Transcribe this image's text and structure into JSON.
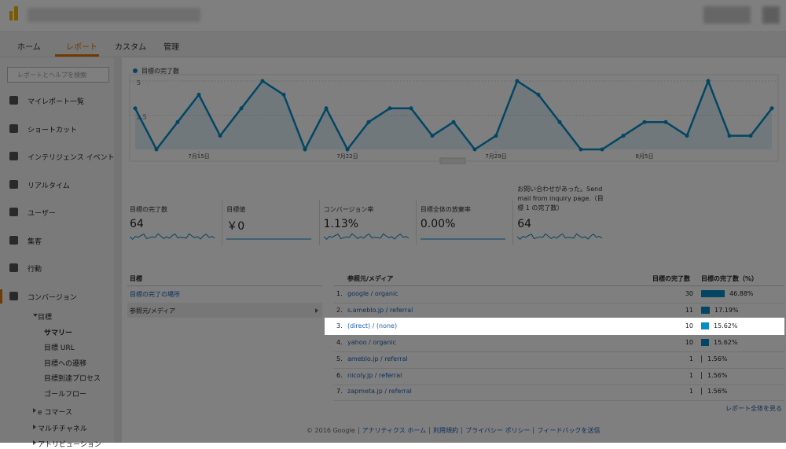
{
  "top_nav": {
    "tabs": [
      "ホーム",
      "レポート",
      "カスタム",
      "管理"
    ],
    "active_tab": 1
  },
  "sidebar": {
    "search_placeholder": "レポートとヘルプを検索",
    "items": [
      "マイレポート一覧",
      "ショートカット",
      "インテリジェンス イベント",
      "リアルタイム",
      "ユーザー",
      "集客",
      "行動",
      "コンバージョン"
    ],
    "active_item": 7,
    "sub_group": "目標",
    "sub_items": [
      "サマリー",
      "目標 URL",
      "目標への遷移",
      "目標到達プロセス",
      "ゴールフロー"
    ],
    "more_groups": [
      "e コマース",
      "マルチチャネル",
      "アトリビューション"
    ]
  },
  "chart_data": {
    "type": "line",
    "categories": [
      null,
      null,
      null,
      "7月15日",
      null,
      null,
      null,
      null,
      null,
      null,
      "7月22日",
      null,
      null,
      null,
      null,
      null,
      null,
      "7月29日",
      null,
      null,
      null,
      null,
      null,
      null,
      "8月5日",
      null,
      null,
      null,
      null,
      null,
      null
    ],
    "series": [
      {
        "name": "目標の完了数",
        "color": "#058dc7",
        "values": [
          3,
          0,
          2,
          4,
          1,
          3,
          5,
          4,
          0,
          3,
          0,
          2,
          3,
          3,
          1,
          2,
          0,
          1,
          5,
          4,
          2,
          0,
          0,
          1,
          2,
          2,
          1,
          5,
          1,
          1,
          3
        ]
      }
    ],
    "ylim": [
      0,
      5
    ],
    "yticks": [
      2.5,
      5
    ],
    "grid": true
  },
  "scorecards": [
    {
      "label": "目標の完了数",
      "value": 64
    },
    {
      "label": "目標値",
      "value": "￥0"
    },
    {
      "label": "コンバージョン率",
      "value": "1.13%"
    },
    {
      "label": "目標全体の放棄率",
      "value": "0.00%"
    },
    {
      "label": "お問い合わせがあった。Send mail from inquiry page.（目標 1 の完了数）",
      "value": 64
    }
  ],
  "dimension_panel": {
    "header": "目標",
    "items": [
      "目標の完了の場所",
      "参照元/メディア"
    ],
    "selected": 1
  },
  "table": {
    "headers": [
      "参照元/メディア",
      "目標の完了数",
      "目標の完了数（%）"
    ],
    "highlighted_row": 2,
    "rows": [
      {
        "rank": "1.",
        "source": "google / organic",
        "count": 30,
        "percent": {
          "value": 46.88,
          "label": "46.88%"
        }
      },
      {
        "rank": "2.",
        "source": "s.ameblo.jp / referral",
        "count": 11,
        "percent": {
          "value": 17.19,
          "label": "17.19%"
        }
      },
      {
        "rank": "3.",
        "source": "(direct) / (none)",
        "count": 10,
        "percent": {
          "value": 15.62,
          "label": "15.62%"
        }
      },
      {
        "rank": "4.",
        "source": "yahoo / organic",
        "count": 10,
        "percent": {
          "value": 15.62,
          "label": "15.62%"
        }
      },
      {
        "rank": "5.",
        "source": "ameblo.jp / referral",
        "count": 1,
        "percent": {
          "value": 1.56,
          "label": "1.56%"
        }
      },
      {
        "rank": "6.",
        "source": "nicoly.jp / referral",
        "count": 1,
        "percent": {
          "value": 1.56,
          "label": "1.56%"
        }
      },
      {
        "rank": "7.",
        "source": "zapmeta.jp / referral",
        "count": 1,
        "percent": {
          "value": 1.56,
          "label": "1.56%"
        }
      }
    ],
    "full_report_link": "レポート全体を見る"
  },
  "footer": {
    "copyright": "© 2016 Google",
    "links": [
      "アナリティクス ホーム",
      "利用規約",
      "プライバシー ポリシー",
      "フィードバックを送信"
    ]
  }
}
